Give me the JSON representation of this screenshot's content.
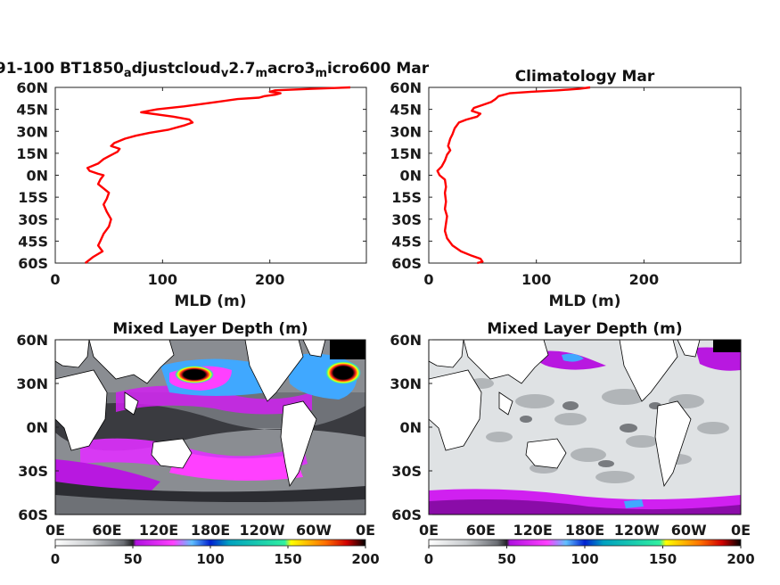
{
  "chart_data": [
    {
      "type": "line",
      "title_main": "91-100 BT1850",
      "title_parts": [
        {
          "text": "a",
          "sub": true
        },
        {
          "text": "djustcloud",
          "sub": false
        },
        {
          "text": "v",
          "sub": true
        },
        {
          "text": "2.7",
          "sub": false
        },
        {
          "text": "m",
          "sub": true
        },
        {
          "text": "acro3",
          "sub": false
        },
        {
          "text": "m",
          "sub": true
        },
        {
          "text": "icro600 Mar",
          "sub": false
        }
      ],
      "xlabel": "MLD (m)",
      "xlim": [
        0,
        290
      ],
      "ylim": [
        -60,
        60
      ],
      "xticks": [
        0,
        100,
        200
      ],
      "yticks": [
        "60N",
        "45N",
        "30N",
        "15N",
        "0N",
        "15S",
        "30S",
        "45S",
        "60S"
      ],
      "color": "#ff0000",
      "points": [
        [
          275,
          60
        ],
        [
          240,
          59
        ],
        [
          205,
          58
        ],
        [
          200,
          57
        ],
        [
          210,
          56
        ],
        [
          205,
          55
        ],
        [
          195,
          54
        ],
        [
          190,
          53
        ],
        [
          170,
          52
        ],
        [
          150,
          50
        ],
        [
          120,
          47
        ],
        [
          95,
          45
        ],
        [
          80,
          43
        ],
        [
          90,
          42
        ],
        [
          110,
          40
        ],
        [
          125,
          38
        ],
        [
          128,
          36
        ],
        [
          120,
          34
        ],
        [
          105,
          31
        ],
        [
          88,
          29
        ],
        [
          75,
          27
        ],
        [
          65,
          25
        ],
        [
          55,
          22
        ],
        [
          52,
          20
        ],
        [
          60,
          18
        ],
        [
          58,
          16
        ],
        [
          50,
          13
        ],
        [
          45,
          11
        ],
        [
          40,
          8
        ],
        [
          30,
          5
        ],
        [
          32,
          3
        ],
        [
          40,
          1
        ],
        [
          45,
          0
        ],
        [
          42,
          -3
        ],
        [
          40,
          -6
        ],
        [
          45,
          -9
        ],
        [
          50,
          -12
        ],
        [
          48,
          -16
        ],
        [
          45,
          -20
        ],
        [
          48,
          -25
        ],
        [
          52,
          -30
        ],
        [
          50,
          -35
        ],
        [
          45,
          -40
        ],
        [
          42,
          -45
        ],
        [
          40,
          -48
        ],
        [
          44,
          -52
        ],
        [
          35,
          -56
        ],
        [
          28,
          -60
        ]
      ]
    },
    {
      "type": "line",
      "title": "Climatology Mar",
      "xlabel": "MLD (m)",
      "xlim": [
        0,
        290
      ],
      "ylim": [
        -60,
        60
      ],
      "xticks": [
        0,
        100,
        200
      ],
      "yticks": [
        "60N",
        "45N",
        "30N",
        "15N",
        "0N",
        "15S",
        "30S",
        "45S",
        "60S"
      ],
      "color": "#ff0000",
      "points": [
        [
          150,
          60
        ],
        [
          140,
          59
        ],
        [
          120,
          58
        ],
        [
          95,
          57
        ],
        [
          75,
          56
        ],
        [
          65,
          54
        ],
        [
          62,
          52
        ],
        [
          58,
          50
        ],
        [
          50,
          48
        ],
        [
          42,
          46
        ],
        [
          40,
          44
        ],
        [
          48,
          42
        ],
        [
          45,
          40
        ],
        [
          35,
          38
        ],
        [
          28,
          36
        ],
        [
          24,
          32
        ],
        [
          22,
          28
        ],
        [
          20,
          25
        ],
        [
          18,
          20
        ],
        [
          20,
          17
        ],
        [
          17,
          14
        ],
        [
          15,
          10
        ],
        [
          12,
          6
        ],
        [
          8,
          3
        ],
        [
          10,
          0
        ],
        [
          15,
          -3
        ],
        [
          16,
          -8
        ],
        [
          15,
          -12
        ],
        [
          16,
          -18
        ],
        [
          15,
          -23
        ],
        [
          17,
          -28
        ],
        [
          16,
          -33
        ],
        [
          15,
          -38
        ],
        [
          17,
          -43
        ],
        [
          22,
          -48
        ],
        [
          30,
          -52
        ],
        [
          40,
          -55
        ],
        [
          48,
          -57
        ],
        [
          50,
          -59
        ],
        [
          45,
          -60
        ]
      ]
    },
    {
      "type": "heatmap",
      "title": "Mixed Layer Depth (m)",
      "xticks": [
        "0E",
        "60E",
        "120E",
        "180E",
        "120W",
        "60W",
        "0E"
      ],
      "yticks": [
        "60N",
        "30N",
        "0N",
        "30S",
        "60S"
      ],
      "colorbar_ticks": [
        "0",
        "50",
        "100",
        "150",
        "200"
      ],
      "colorbar_range": [
        0,
        200
      ]
    },
    {
      "type": "heatmap",
      "title": "Mixed Layer Depth (m)",
      "xticks": [
        "0E",
        "60E",
        "120E",
        "180E",
        "120W",
        "60W",
        "0E"
      ],
      "yticks": [
        "60N",
        "30N",
        "0N",
        "30S",
        "60S"
      ],
      "colorbar_ticks": [
        "0",
        "50",
        "100",
        "150",
        "200"
      ],
      "colorbar_range": [
        0,
        200
      ]
    }
  ],
  "colors": {
    "line": "#ff0000",
    "colormap": [
      "#ffffff",
      "#c8cbce",
      "#707379",
      "#1e1e22",
      "#d020f0",
      "#ff40ff",
      "#38a0ff",
      "#0030e0",
      "#20f0a0",
      "#f0f000",
      "#ff6000",
      "#c00000",
      "#000000"
    ]
  }
}
